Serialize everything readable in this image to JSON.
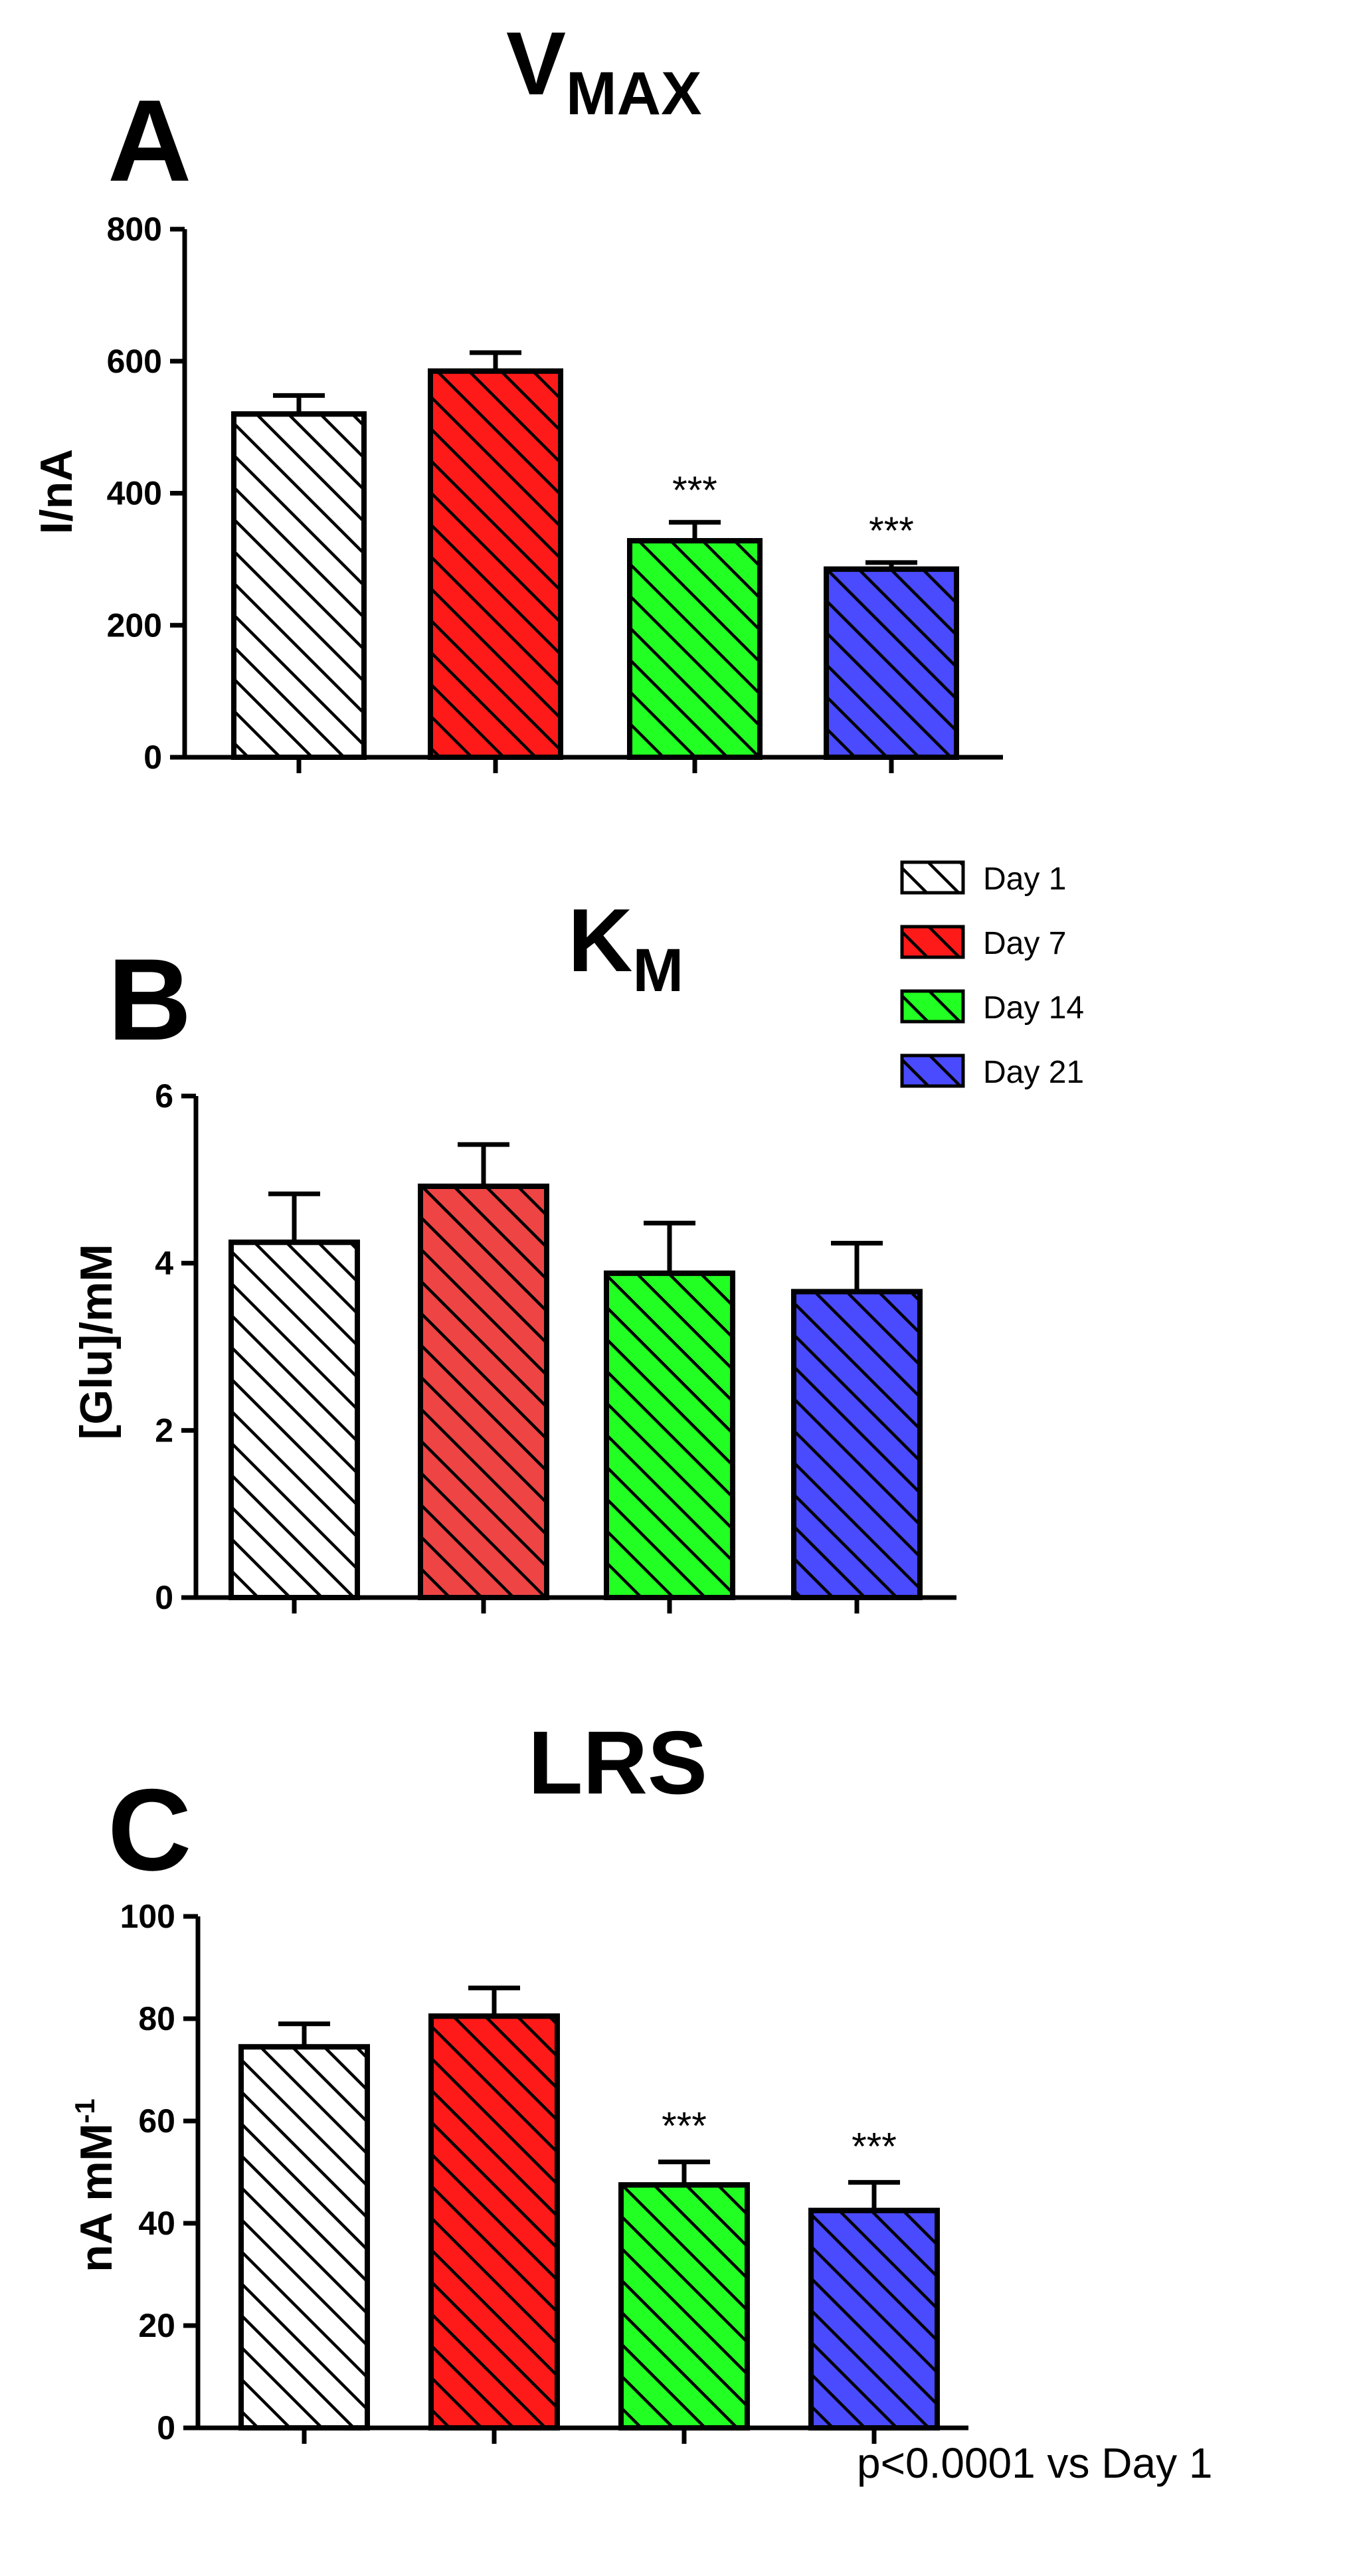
{
  "chart_data": [
    {
      "type": "bar",
      "panel_label": "A",
      "title_main": "V",
      "title_sub": "MAX",
      "ylabel": "I/nA",
      "ylabel_sup": "",
      "ylim": [
        0,
        800
      ],
      "yticks": [
        "0",
        "200",
        "400",
        "600",
        "800"
      ],
      "categories": [
        "Day 1",
        "Day 7",
        "Day 14",
        "Day 21"
      ],
      "values": [
        520,
        585,
        328,
        285
      ],
      "errors": [
        28,
        28,
        28,
        10
      ],
      "significance": [
        "",
        "",
        "***",
        "***"
      ]
    },
    {
      "type": "bar",
      "panel_label": "B",
      "title_main": "K",
      "title_sub": "M",
      "ylabel": "[Glu]/mM",
      "ylabel_sup": "",
      "ylim": [
        0,
        6
      ],
      "yticks": [
        "0",
        "2",
        "4",
        "6"
      ],
      "categories": [
        "Day 1",
        "Day 7",
        "Day 14",
        "Day 21"
      ],
      "values": [
        4.25,
        4.92,
        3.88,
        3.66
      ],
      "errors": [
        0.58,
        0.5,
        0.6,
        0.58
      ],
      "significance": [
        "",
        "",
        "",
        ""
      ]
    },
    {
      "type": "bar",
      "panel_label": "C",
      "title_main": "LRS",
      "title_sub": "",
      "ylabel": "nA mM",
      "ylabel_sup": "-1",
      "ylim": [
        0,
        100
      ],
      "yticks": [
        "0",
        "20",
        "40",
        "60",
        "80",
        "100"
      ],
      "categories": [
        "Day 1",
        "Day 7",
        "Day 14",
        "Day 21"
      ],
      "values": [
        74.5,
        80.5,
        47.5,
        42.5
      ],
      "errors": [
        4.5,
        5.5,
        4.5,
        5.5
      ],
      "significance": [
        "",
        "",
        "***",
        "***"
      ]
    }
  ],
  "legend": {
    "entries": [
      "Day 1",
      "Day 7",
      "Day 14",
      "Day 21"
    ],
    "colors": [
      "#ffffff",
      "#ff1a1a",
      "#22ff22",
      "#4a4aff"
    ],
    "panel_b_day7_color": "#ee4444"
  },
  "footnote": "p<0.0001 vs Day 1"
}
